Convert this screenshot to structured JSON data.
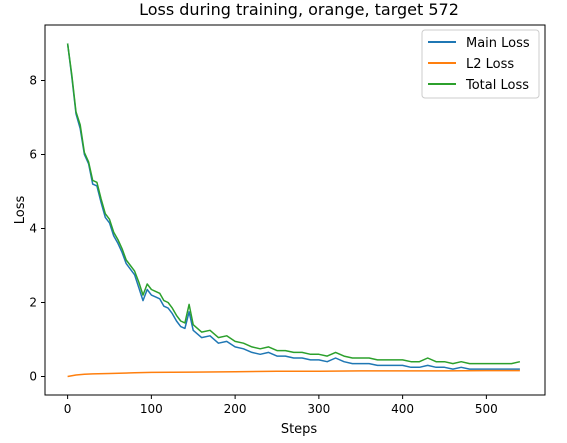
{
  "chart_data": {
    "type": "line",
    "title": "Loss during training, orange, target 572",
    "xlabel": "Steps",
    "ylabel": "Loss",
    "xlim": [
      -27,
      570
    ],
    "ylim": [
      -0.5,
      9.5
    ],
    "xticks": [
      0,
      100,
      200,
      300,
      400,
      500
    ],
    "yticks": [
      0,
      2,
      4,
      6,
      8
    ],
    "grid": false,
    "legend_position": "top-right",
    "series": [
      {
        "name": "Main Loss",
        "color": "#1f77b4",
        "x": [
          0,
          5,
          10,
          15,
          20,
          25,
          30,
          35,
          40,
          45,
          50,
          55,
          60,
          65,
          70,
          75,
          80,
          85,
          90,
          95,
          100,
          105,
          110,
          115,
          120,
          125,
          130,
          135,
          140,
          145,
          150,
          160,
          170,
          180,
          190,
          200,
          210,
          220,
          230,
          240,
          250,
          260,
          270,
          280,
          290,
          300,
          310,
          320,
          330,
          340,
          350,
          360,
          370,
          380,
          390,
          400,
          410,
          420,
          430,
          440,
          450,
          460,
          470,
          480,
          490,
          500,
          510,
          520,
          530,
          540
        ],
        "y": [
          9.0,
          8.1,
          7.1,
          6.7,
          6.0,
          5.75,
          5.2,
          5.15,
          4.7,
          4.3,
          4.15,
          3.8,
          3.6,
          3.35,
          3.05,
          2.9,
          2.75,
          2.4,
          2.05,
          2.35,
          2.2,
          2.15,
          2.1,
          1.9,
          1.85,
          1.7,
          1.5,
          1.35,
          1.3,
          1.75,
          1.25,
          1.05,
          1.1,
          0.9,
          0.95,
          0.8,
          0.75,
          0.65,
          0.6,
          0.65,
          0.55,
          0.55,
          0.5,
          0.5,
          0.45,
          0.45,
          0.4,
          0.5,
          0.4,
          0.35,
          0.35,
          0.35,
          0.3,
          0.3,
          0.3,
          0.3,
          0.25,
          0.25,
          0.3,
          0.25,
          0.25,
          0.2,
          0.25,
          0.2,
          0.2,
          0.2,
          0.2,
          0.2,
          0.2,
          0.2
        ]
      },
      {
        "name": "L2 Loss",
        "color": "#ff7f0e",
        "x": [
          0,
          10,
          20,
          30,
          50,
          80,
          100,
          150,
          200,
          250,
          300,
          350,
          400,
          450,
          500,
          540
        ],
        "y": [
          0.0,
          0.04,
          0.06,
          0.07,
          0.08,
          0.1,
          0.11,
          0.12,
          0.13,
          0.14,
          0.14,
          0.15,
          0.15,
          0.15,
          0.16,
          0.16
        ]
      },
      {
        "name": "Total Loss",
        "color": "#2ca02c",
        "x": [
          0,
          5,
          10,
          15,
          20,
          25,
          30,
          35,
          40,
          45,
          50,
          55,
          60,
          65,
          70,
          75,
          80,
          85,
          90,
          95,
          100,
          105,
          110,
          115,
          120,
          125,
          130,
          135,
          140,
          145,
          150,
          160,
          170,
          180,
          190,
          200,
          210,
          220,
          230,
          240,
          250,
          260,
          270,
          280,
          290,
          300,
          310,
          320,
          330,
          340,
          350,
          360,
          370,
          380,
          390,
          400,
          410,
          420,
          430,
          440,
          450,
          460,
          470,
          480,
          490,
          500,
          510,
          520,
          530,
          540
        ],
        "y": [
          9.0,
          8.15,
          7.15,
          6.8,
          6.05,
          5.8,
          5.3,
          5.25,
          4.8,
          4.4,
          4.25,
          3.9,
          3.7,
          3.45,
          3.15,
          3.0,
          2.85,
          2.55,
          2.2,
          2.5,
          2.35,
          2.3,
          2.25,
          2.05,
          2.0,
          1.85,
          1.65,
          1.5,
          1.45,
          1.95,
          1.4,
          1.2,
          1.25,
          1.05,
          1.1,
          0.95,
          0.9,
          0.8,
          0.75,
          0.8,
          0.7,
          0.7,
          0.65,
          0.65,
          0.6,
          0.6,
          0.55,
          0.65,
          0.55,
          0.5,
          0.5,
          0.5,
          0.45,
          0.45,
          0.45,
          0.45,
          0.4,
          0.4,
          0.5,
          0.4,
          0.4,
          0.35,
          0.4,
          0.35,
          0.35,
          0.35,
          0.35,
          0.35,
          0.35,
          0.4
        ]
      }
    ]
  }
}
